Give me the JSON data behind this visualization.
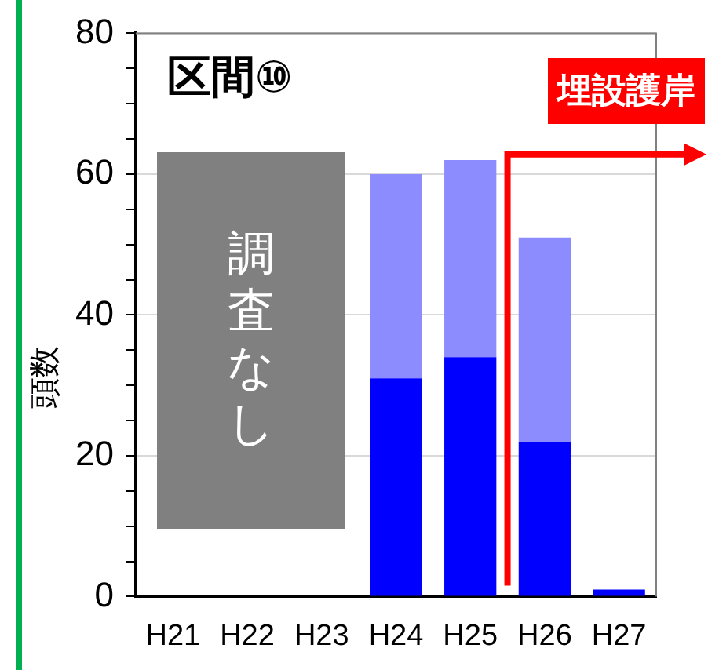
{
  "chart_data": {
    "type": "bar",
    "title": "区間⑩",
    "ylabel": "頭数",
    "categories": [
      "H21",
      "H22",
      "H23",
      "H24",
      "H25",
      "H26",
      "H27"
    ],
    "stacked": true,
    "series": [
      {
        "color": "#0000ff",
        "values": [
          null,
          null,
          null,
          31,
          34,
          22,
          1
        ]
      },
      {
        "color": "#8c8cff",
        "values": [
          null,
          null,
          null,
          29,
          28,
          29,
          0
        ]
      }
    ],
    "ylim": [
      0,
      80
    ],
    "yticks": [
      0,
      {
        "value": 5,
        "label": null
      },
      {
        "value": 10,
        "label": null
      },
      {
        "value": 15,
        "label": null
      },
      20,
      {
        "value": 25,
        "label": null
      },
      {
        "value": 30,
        "label": null
      },
      {
        "value": 35,
        "label": null
      },
      40,
      {
        "value": 45,
        "label": null
      },
      {
        "value": 50,
        "label": null
      },
      {
        "value": 55,
        "label": null
      },
      60,
      {
        "value": 65,
        "label": null
      },
      {
        "value": 70,
        "label": null
      },
      {
        "value": 75,
        "label": null
      },
      80
    ],
    "grid": "y",
    "legend": false,
    "annotations": [
      "調査なし",
      "埋設護岸"
    ]
  }
}
